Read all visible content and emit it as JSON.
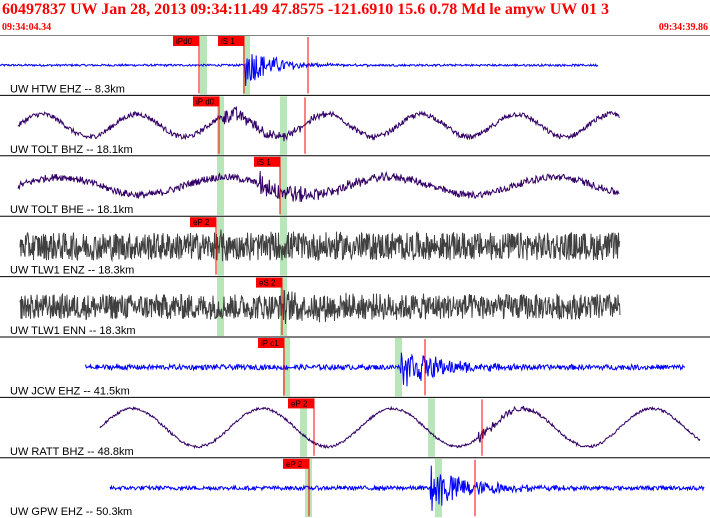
{
  "header": {
    "title": "60497837 UW Jan 28, 2013 09:34:11.49    47.8575 -121.6910 15.6 0.78 Md le amyw UW 01    3",
    "start_time": "09:34:04.34",
    "end_time": "09:34:39.86"
  },
  "colors": {
    "header_text": "#ff0000",
    "blue_trace": "#0000ff",
    "purple_trace": "#330066",
    "gray_trace": "#404040",
    "pick_marker": "#ff0000",
    "phase_window": "#b8e6b8",
    "divider": "#000000"
  },
  "traces": [
    {
      "label": "UW HTW EHZ -- 8.3km",
      "color": "blue",
      "kind": "event",
      "x0": 0,
      "x1": 598,
      "noise": 0.04,
      "event_at": 245,
      "event_amp": 0.85,
      "event_decay": 28,
      "green": [
        200,
        243
      ],
      "picks": [
        {
          "label": "iPd0",
          "x": 173
        },
        {
          "label": "iS 1",
          "x": 218
        }
      ],
      "red_line": 308
    },
    {
      "label": "UW TOLT BHZ -- 18.1km",
      "color": "purple",
      "kind": "wave",
      "x0": 18,
      "x1": 620,
      "noise": 0.1,
      "wave_amp": 0.45,
      "wave_period": 95,
      "event_at": 222,
      "event_amp": 0.35,
      "event_decay": 60,
      "green": [
        217,
        280
      ],
      "picks": [
        {
          "label": "iP d0",
          "x": 193
        }
      ],
      "red_line": 305
    },
    {
      "label": "UW TOLT BHE -- 18.1km",
      "color": "purple",
      "kind": "wave",
      "x0": 18,
      "x1": 620,
      "noise": 0.14,
      "wave_amp": 0.35,
      "wave_period": 165,
      "event_at": 260,
      "event_amp": 0.45,
      "event_decay": 60,
      "green": [
        217,
        280
      ],
      "picks": [
        {
          "label": "iS 1",
          "x": 254
        }
      ]
    },
    {
      "label": "UW TLW1 ENZ -- 18.3km",
      "color": "gray",
      "kind": "noise",
      "x0": 20,
      "x1": 620,
      "noise": 0.55,
      "event_at": 220,
      "event_amp": 0.2,
      "event_decay": 80,
      "green": [
        217,
        280
      ],
      "picks": [
        {
          "label": "eP 2",
          "x": 190
        }
      ]
    },
    {
      "label": "UW TLW1 ENN -- 18.3km",
      "color": "gray",
      "kind": "noise",
      "x0": 20,
      "x1": 620,
      "noise": 0.5,
      "event_at": 282,
      "event_amp": 0.25,
      "event_decay": 60,
      "green": [
        217,
        280
      ],
      "picks": [
        {
          "label": "eS 2",
          "x": 256
        }
      ]
    },
    {
      "label": "UW JCW EHZ -- 41.5km",
      "color": "blue",
      "kind": "event",
      "x0": 85,
      "x1": 685,
      "noise": 0.1,
      "event_at": 400,
      "event_amp": 0.85,
      "event_decay": 40,
      "green": [
        283,
        395
      ],
      "picks": [
        {
          "label": "iP c1",
          "x": 258
        }
      ],
      "red_line": 425
    },
    {
      "label": "UW RATT BHZ -- 48.8km",
      "color": "purple",
      "kind": "wave",
      "x0": 100,
      "x1": 700,
      "noise": 0.05,
      "wave_amp": 0.75,
      "wave_period": 130,
      "event_at": 478,
      "event_amp": 0.25,
      "event_decay": 40,
      "green": [
        300,
        428
      ],
      "picks": [
        {
          "label": "eP 2",
          "x": 288
        }
      ],
      "red_line": 482
    },
    {
      "label": "UW GPW EHZ -- 50.3km",
      "color": "blue",
      "kind": "event",
      "x0": 110,
      "x1": 705,
      "noise": 0.08,
      "event_at": 430,
      "event_amp": 0.9,
      "event_decay": 42,
      "green": [
        305,
        435
      ],
      "picks": [
        {
          "label": "eP 2",
          "x": 283
        }
      ],
      "red_line": 475
    }
  ]
}
